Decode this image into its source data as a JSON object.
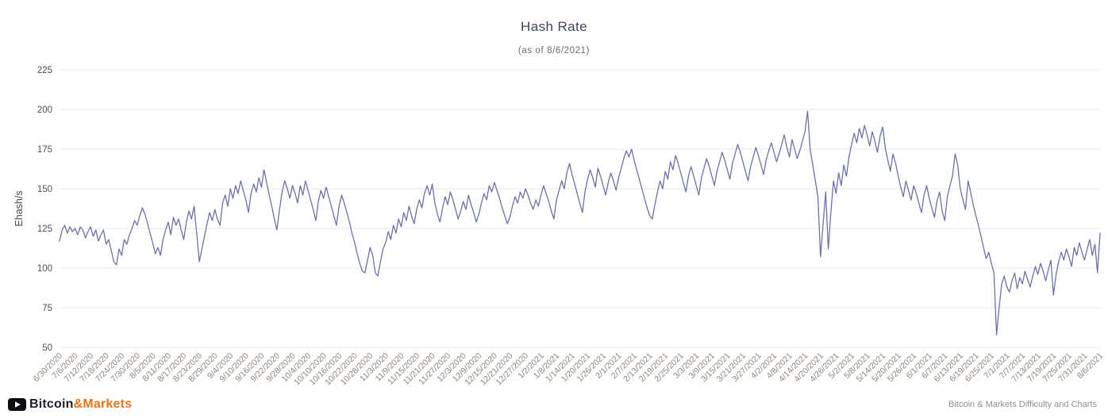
{
  "header": {
    "title": "Hash Rate",
    "subtitle": "(as of 8/6/2021)"
  },
  "footer": {
    "brand_prefix": "Bitcoin",
    "brand_suffix": "&Markets",
    "right_text": "Bitcoin & Markets Difficulty and Charts"
  },
  "colors": {
    "line": "#6c71a8",
    "grid": "#e7e7e7",
    "title": "#3f4458",
    "subtitle": "#6b6b6b",
    "y_tick": "#55504b",
    "x_tick": "#8f867d",
    "axis_title": "#4a4a4a",
    "brand_orange": "#e8731a"
  },
  "chart_data": {
    "type": "line",
    "title": "Hash Rate",
    "subtitle": "(as of 8/6/2021)",
    "xlabel": "",
    "ylabel": "Ehash/s",
    "ylim": [
      50,
      225
    ],
    "y_ticks": [
      50,
      75,
      100,
      125,
      150,
      175,
      200,
      225
    ],
    "grid": "horizontal",
    "legend": "none",
    "start_date": "6/30/2020",
    "end_date": "8/6/2021",
    "x_tick_interval_days": 6,
    "x_tick_labels": [
      "6/30/2020",
      "7/6/2020",
      "7/12/2020",
      "7/18/2020",
      "7/24/2020",
      "7/30/2020",
      "8/5/2020",
      "8/11/2020",
      "8/17/2020",
      "8/23/2020",
      "8/29/2020",
      "9/4/2020",
      "9/10/2020",
      "9/16/2020",
      "9/22/2020",
      "9/28/2020",
      "10/4/2020",
      "10/10/2020",
      "10/16/2020",
      "10/22/2020",
      "10/28/2020",
      "11/3/2020",
      "11/9/2020",
      "11/15/2020",
      "11/21/2020",
      "11/27/2020",
      "12/3/2020",
      "12/9/2020",
      "12/15/2020",
      "12/21/2020",
      "12/27/2020",
      "1/2/2021",
      "1/8/2021",
      "1/14/2021",
      "1/20/2021",
      "1/26/2021",
      "2/1/2021",
      "2/7/2021",
      "2/13/2021",
      "2/19/2021",
      "2/25/2021",
      "3/3/2021",
      "3/9/2021",
      "3/15/2021",
      "3/21/2021",
      "3/27/2021",
      "4/2/2021",
      "4/8/2021",
      "4/14/2021",
      "4/20/2021",
      "4/26/2021",
      "5/2/2021",
      "5/8/2021",
      "5/14/2021",
      "5/20/2021",
      "5/26/2021",
      "6/1/2021",
      "6/7/2021",
      "6/13/2021",
      "6/19/2021",
      "6/25/2021",
      "7/1/2021",
      "7/7/2021",
      "7/13/2021",
      "7/19/2021",
      "7/25/2021",
      "7/31/2021",
      "8/6/2021"
    ],
    "series": [
      {
        "name": "Hash Rate (Ehash/s)",
        "values": [
          117,
          124,
          127,
          122,
          126,
          123,
          125,
          121,
          126,
          124,
          119,
          123,
          126,
          120,
          124,
          117,
          121,
          124,
          115,
          118,
          111,
          104,
          102,
          112,
          108,
          118,
          115,
          121,
          125,
          130,
          127,
          133,
          138,
          134,
          128,
          122,
          116,
          109,
          113,
          108,
          118,
          124,
          129,
          121,
          132,
          127,
          131,
          124,
          118,
          129,
          136,
          131,
          139,
          122,
          104,
          112,
          120,
          128,
          135,
          130,
          137,
          131,
          127,
          141,
          146,
          139,
          150,
          144,
          152,
          147,
          155,
          149,
          143,
          135,
          147,
          153,
          148,
          157,
          151,
          162,
          154,
          146,
          139,
          131,
          124,
          137,
          148,
          155,
          150,
          144,
          152,
          147,
          141,
          152,
          146,
          155,
          149,
          143,
          137,
          130,
          142,
          149,
          144,
          151,
          145,
          139,
          133,
          127,
          139,
          146,
          141,
          135,
          129,
          122,
          116,
          109,
          103,
          98,
          97,
          105,
          113,
          108,
          97,
          95,
          104,
          112,
          116,
          123,
          118,
          127,
          122,
          131,
          126,
          135,
          130,
          139,
          133,
          128,
          137,
          143,
          138,
          147,
          152,
          146,
          153,
          141,
          134,
          129,
          138,
          145,
          140,
          148,
          143,
          137,
          131,
          136,
          142,
          137,
          146,
          140,
          135,
          129,
          134,
          141,
          147,
          143,
          152,
          148,
          154,
          149,
          144,
          138,
          133,
          128,
          132,
          139,
          145,
          141,
          148,
          144,
          150,
          146,
          141,
          137,
          143,
          139,
          146,
          152,
          147,
          142,
          136,
          131,
          143,
          149,
          155,
          150,
          160,
          166,
          159,
          153,
          147,
          141,
          135,
          148,
          156,
          162,
          157,
          151,
          163,
          158,
          152,
          146,
          154,
          160,
          155,
          149,
          157,
          163,
          169,
          174,
          170,
          175,
          168,
          162,
          156,
          150,
          144,
          138,
          133,
          131,
          140,
          148,
          155,
          150,
          161,
          156,
          167,
          162,
          171,
          166,
          160,
          154,
          148,
          158,
          164,
          158,
          152,
          146,
          157,
          163,
          169,
          164,
          158,
          152,
          161,
          167,
          173,
          168,
          162,
          156,
          166,
          172,
          178,
          173,
          167,
          161,
          155,
          164,
          170,
          176,
          171,
          165,
          159,
          168,
          174,
          179,
          173,
          167,
          172,
          178,
          184,
          176,
          170,
          181,
          175,
          169,
          174,
          180,
          186,
          199,
          175,
          165,
          155,
          145,
          107,
          128,
          148,
          112,
          135,
          155,
          147,
          160,
          152,
          165,
          158,
          170,
          178,
          185,
          179,
          188,
          182,
          190,
          184,
          177,
          186,
          180,
          173,
          183,
          189,
          176,
          168,
          161,
          172,
          166,
          158,
          151,
          145,
          155,
          149,
          143,
          152,
          147,
          141,
          135,
          146,
          152,
          144,
          138,
          132,
          142,
          148,
          136,
          130,
          145,
          152,
          158,
          172,
          165,
          150,
          143,
          137,
          155,
          148,
          140,
          133,
          127,
          120,
          113,
          106,
          110,
          103,
          97,
          58,
          75,
          90,
          95,
          88,
          85,
          92,
          97,
          87,
          94,
          90,
          98,
          93,
          88,
          95,
          101,
          96,
          103,
          98,
          92,
          99,
          105,
          83,
          96,
          104,
          110,
          105,
          112,
          107,
          101,
          113,
          108,
          116,
          110,
          105,
          112,
          118,
          108,
          115,
          97,
          122
        ]
      }
    ]
  }
}
